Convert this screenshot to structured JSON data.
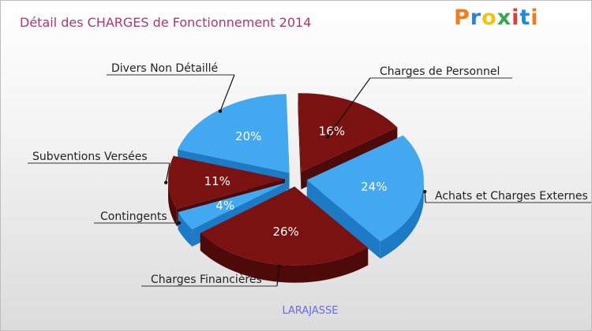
{
  "header": {
    "title": "Détail des CHARGES de Fonctionnement 2014",
    "logo_text": "Proxiti"
  },
  "footer": {
    "city": "LARAJASSE"
  },
  "colors": {
    "logo": [
      "#f07c1a",
      "#2f7fd6",
      "#f1c40f",
      "#34a853",
      "#e53935",
      "#1e88e5",
      "#f07c1a"
    ]
  },
  "chart_data": {
    "type": "pie",
    "title": "Détail des CHARGES de Fonctionnement 2014",
    "slices": [
      {
        "label": "Charges de Personnel",
        "value": 16,
        "display": "16%",
        "color": "#7a1212",
        "side_color": "#4e0909"
      },
      {
        "label": "Achats et Charges Externes",
        "value": 24,
        "display": "24%",
        "color": "#42a8f0",
        "side_color": "#1d7ac4"
      },
      {
        "label": "Charges Financières",
        "value": 26,
        "display": "26%",
        "color": "#7a1212",
        "side_color": "#4e0909"
      },
      {
        "label": "Contingents",
        "value": 4,
        "display": "4%",
        "color": "#42a8f0",
        "side_color": "#1d7ac4"
      },
      {
        "label": "Subventions Versées",
        "value": 11,
        "display": "11%",
        "color": "#7a1212",
        "side_color": "#4e0909"
      },
      {
        "label": "Divers Non Détaillé",
        "value": 20,
        "display": "20%",
        "color": "#42a8f0",
        "side_color": "#1d7ac4"
      }
    ]
  }
}
